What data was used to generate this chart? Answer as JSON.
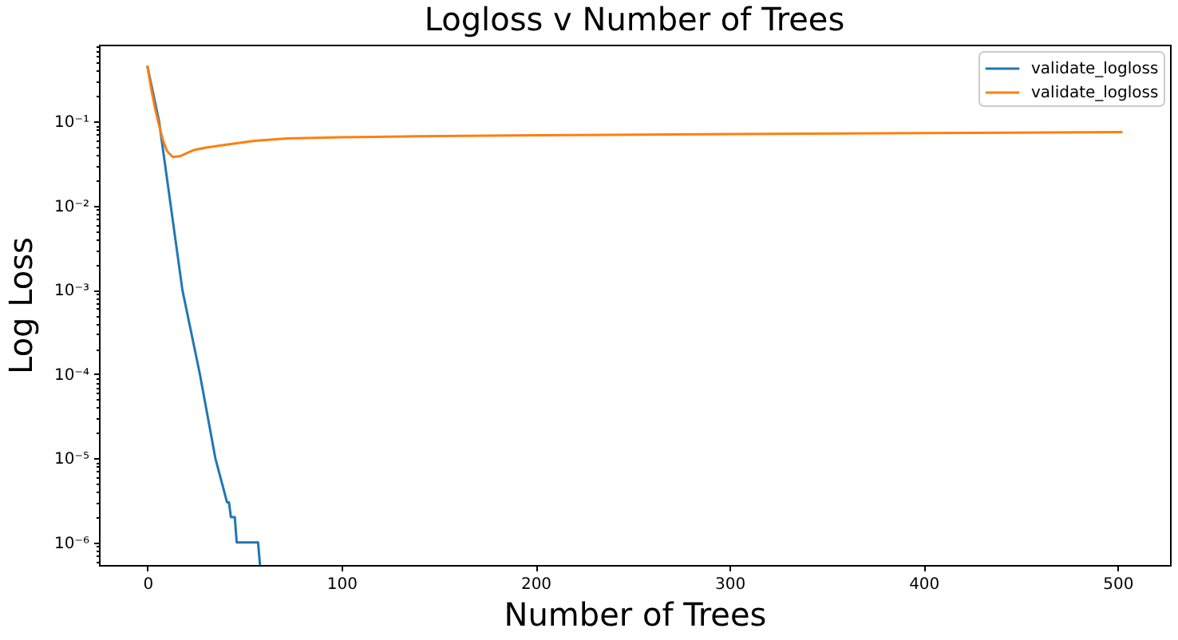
{
  "chart_data": {
    "type": "line",
    "title": "Logloss v Number of Trees",
    "xlabel": "Number of Trees",
    "ylabel": "Log Loss",
    "log": "y",
    "xlim": [
      -25,
      527
    ],
    "xticks": [
      0,
      100,
      200,
      300,
      400,
      500
    ],
    "ylim": [
      5.4e-07,
      0.82
    ],
    "yticks": [
      {
        "value": 6e-07,
        "label": null
      },
      {
        "value": 7e-07,
        "label": null
      },
      {
        "value": 8e-07,
        "label": null
      },
      {
        "value": 9e-07,
        "label": null
      },
      {
        "value": 1e-06,
        "label": "10⁻⁶"
      },
      {
        "value": 2e-06,
        "label": null
      },
      {
        "value": 3e-06,
        "label": null
      },
      {
        "value": 4e-06,
        "label": null
      },
      {
        "value": 5e-06,
        "label": null
      },
      {
        "value": 6e-06,
        "label": null
      },
      {
        "value": 7e-06,
        "label": null
      },
      {
        "value": 8e-06,
        "label": null
      },
      {
        "value": 9e-06,
        "label": null
      },
      {
        "value": 1e-05,
        "label": "10⁻⁵"
      },
      {
        "value": 2e-05,
        "label": null
      },
      {
        "value": 3e-05,
        "label": null
      },
      {
        "value": 4e-05,
        "label": null
      },
      {
        "value": 5e-05,
        "label": null
      },
      {
        "value": 6e-05,
        "label": null
      },
      {
        "value": 7e-05,
        "label": null
      },
      {
        "value": 8e-05,
        "label": null
      },
      {
        "value": 9e-05,
        "label": null
      },
      {
        "value": 0.0001,
        "label": "10⁻⁴"
      },
      {
        "value": 0.0002,
        "label": null
      },
      {
        "value": 0.0003,
        "label": null
      },
      {
        "value": 0.0004,
        "label": null
      },
      {
        "value": 0.0005,
        "label": null
      },
      {
        "value": 0.0006,
        "label": null
      },
      {
        "value": 0.0007,
        "label": null
      },
      {
        "value": 0.0008,
        "label": null
      },
      {
        "value": 0.0009,
        "label": null
      },
      {
        "value": 0.001,
        "label": "10⁻³"
      },
      {
        "value": 0.002,
        "label": null
      },
      {
        "value": 0.003,
        "label": null
      },
      {
        "value": 0.004,
        "label": null
      },
      {
        "value": 0.005,
        "label": null
      },
      {
        "value": 0.006,
        "label": null
      },
      {
        "value": 0.007,
        "label": null
      },
      {
        "value": 0.008,
        "label": null
      },
      {
        "value": 0.009,
        "label": null
      },
      {
        "value": 0.01,
        "label": "10⁻²"
      },
      {
        "value": 0.02,
        "label": null
      },
      {
        "value": 0.03,
        "label": null
      },
      {
        "value": 0.04,
        "label": null
      },
      {
        "value": 0.05,
        "label": null
      },
      {
        "value": 0.06,
        "label": null
      },
      {
        "value": 0.07,
        "label": null
      },
      {
        "value": 0.08,
        "label": null
      },
      {
        "value": 0.09,
        "label": null
      },
      {
        "value": 0.1,
        "label": "10⁻¹"
      },
      {
        "value": 0.2,
        "label": null
      },
      {
        "value": 0.3,
        "label": null
      },
      {
        "value": 0.4,
        "label": null
      },
      {
        "value": 0.5,
        "label": null
      },
      {
        "value": 0.6,
        "label": null
      },
      {
        "value": 0.7,
        "label": null
      },
      {
        "value": 0.8,
        "label": null
      }
    ],
    "grid": false,
    "legend": "top right",
    "line_style": "solid",
    "series": [
      {
        "name": "validate_logloss",
        "color": "#1f77b4",
        "x": [
          0,
          6,
          12,
          18,
          27,
          35,
          41,
          42,
          43,
          45,
          46,
          57,
          58
        ],
        "values": [
          0.45,
          0.1,
          0.01,
          0.001,
          0.0001,
          1e-05,
          3e-06,
          3e-06,
          2e-06,
          2e-06,
          1e-06,
          1e-06,
          5.4e-07
        ]
      },
      {
        "name": "validate_logloss",
        "color": "#ff7f0e",
        "x": [
          0,
          2,
          4,
          6,
          8,
          10,
          13,
          17,
          20,
          24,
          30,
          40,
          55,
          72,
          100,
          138,
          200,
          300,
          400,
          502
        ],
        "values": [
          0.45,
          0.24,
          0.14,
          0.09,
          0.06,
          0.045,
          0.038,
          0.039,
          0.042,
          0.046,
          0.049,
          0.053,
          0.059,
          0.063,
          0.065,
          0.067,
          0.069,
          0.071,
          0.073,
          0.075
        ]
      }
    ]
  }
}
